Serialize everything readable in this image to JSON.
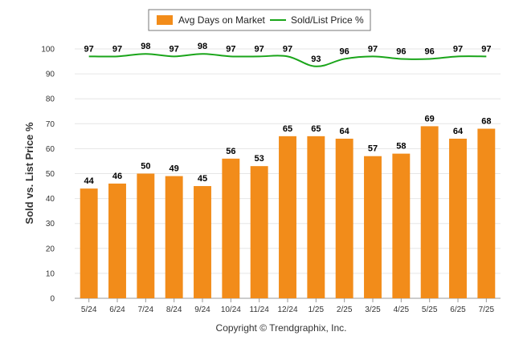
{
  "chart_data": {
    "type": "bar",
    "categories": [
      "5/24",
      "6/24",
      "7/24",
      "8/24",
      "9/24",
      "10/24",
      "11/24",
      "12/24",
      "1/25",
      "2/25",
      "3/25",
      "4/25",
      "5/25",
      "6/25",
      "7/25"
    ],
    "series": [
      {
        "name": "Avg Days on Market",
        "type": "bar",
        "color": "#f28c1a",
        "values": [
          44,
          46,
          50,
          49,
          45,
          56,
          53,
          65,
          65,
          64,
          57,
          58,
          69,
          64,
          68
        ]
      },
      {
        "name": "Sold/List Price %",
        "type": "line",
        "color": "#1aa51a",
        "values": [
          97,
          97,
          98,
          97,
          98,
          97,
          97,
          97,
          93,
          96,
          97,
          96,
          96,
          97,
          97
        ]
      }
    ],
    "ylabel": "Sold vs. List Price %",
    "ylim": [
      0,
      100
    ],
    "yticks": [
      "0",
      "10",
      "20",
      "30",
      "40",
      "50",
      "60",
      "70",
      "80",
      "90",
      "100"
    ],
    "grid": true,
    "legend_position": "top-center"
  },
  "footer": "Copyright © Trendgraphix, Inc."
}
